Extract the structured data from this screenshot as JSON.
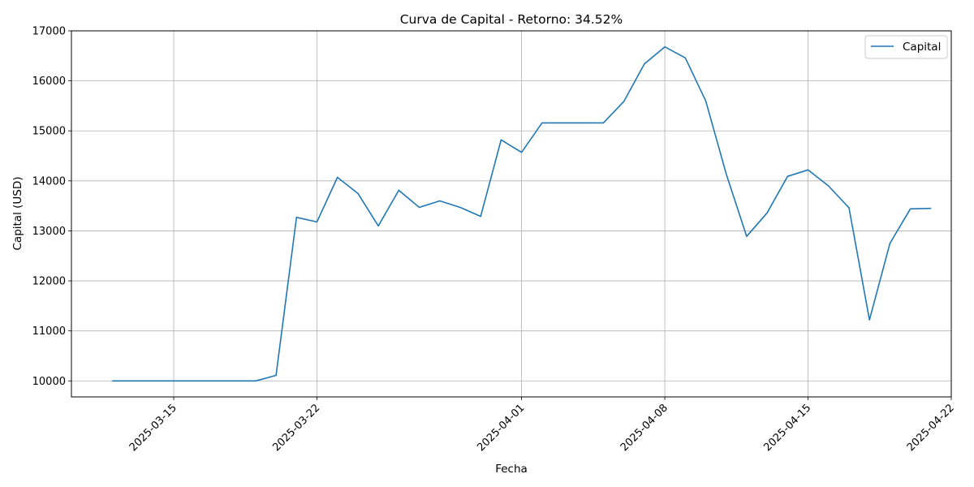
{
  "chart_data": {
    "type": "line",
    "title": "Curva de Capital - Retorno: 34.52%",
    "xlabel": "Fecha",
    "ylabel": "Capital (USD)",
    "ylim": [
      9680,
      17000
    ],
    "xlim": [
      "2025-03-10",
      "2025-04-22"
    ],
    "y_ticks": [
      10000,
      11000,
      12000,
      13000,
      14000,
      15000,
      16000,
      17000
    ],
    "x_ticks": [
      "2025-03-15",
      "2025-03-22",
      "2025-04-01",
      "2025-04-08",
      "2025-04-15",
      "2025-04-22"
    ],
    "grid": true,
    "legend_position": "top-right",
    "colors": {
      "series": "#1f77b4",
      "grid": "#b0b0b0"
    },
    "series": [
      {
        "name": "Capital",
        "x": [
          "2025-03-12",
          "2025-03-13",
          "2025-03-14",
          "2025-03-15",
          "2025-03-16",
          "2025-03-17",
          "2025-03-18",
          "2025-03-19",
          "2025-03-20",
          "2025-03-21",
          "2025-03-22",
          "2025-03-23",
          "2025-03-24",
          "2025-03-25",
          "2025-03-26",
          "2025-03-27",
          "2025-03-28",
          "2025-03-29",
          "2025-03-30",
          "2025-03-31",
          "2025-04-01",
          "2025-04-02",
          "2025-04-03",
          "2025-04-04",
          "2025-04-05",
          "2025-04-06",
          "2025-04-07",
          "2025-04-08",
          "2025-04-09",
          "2025-04-10",
          "2025-04-11",
          "2025-04-12",
          "2025-04-13",
          "2025-04-14",
          "2025-04-15",
          "2025-04-16",
          "2025-04-17",
          "2025-04-18",
          "2025-04-19",
          "2025-04-20",
          "2025-04-21"
        ],
        "values": [
          10000,
          10000,
          10000,
          10000,
          10000,
          10000,
          10000,
          10000,
          10110,
          13270,
          13180,
          14070,
          13750,
          13100,
          13810,
          13470,
          13600,
          13470,
          13290,
          14820,
          14570,
          15160,
          15160,
          15160,
          15160,
          15590,
          16340,
          16680,
          16460,
          15600,
          14140,
          12890,
          13360,
          14090,
          14220,
          13900,
          13460,
          11220,
          12750,
          13440,
          13450
        ]
      }
    ]
  }
}
